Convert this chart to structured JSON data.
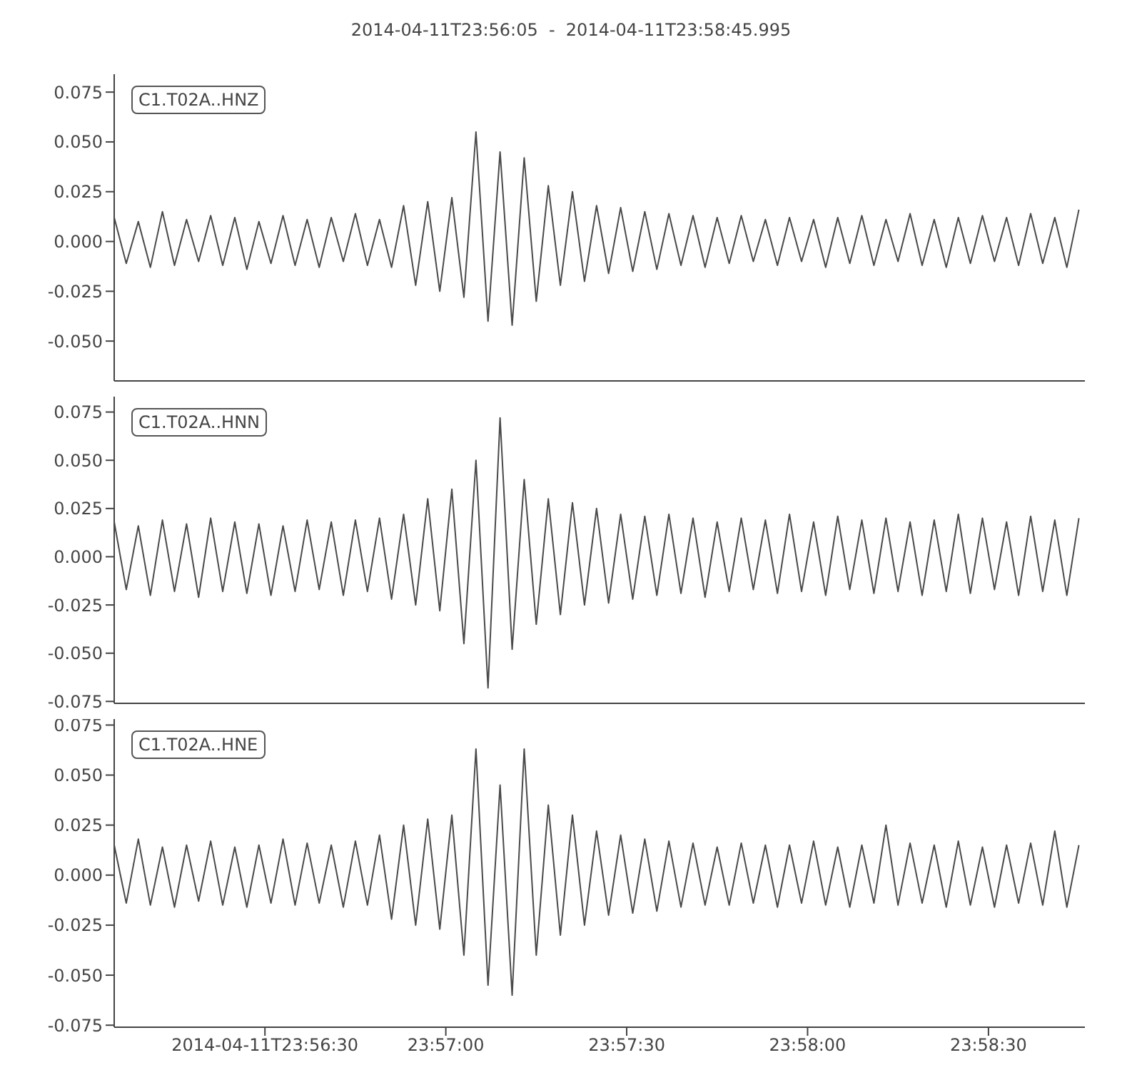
{
  "chart_data": [
    {
      "type": "line",
      "title": "2014-04-11T23:56:05  -  2014-04-11T23:58:45.995",
      "annotations": [
        "C1.T02A..HNZ"
      ],
      "tick_labels": "y",
      "xlim": [
        "2014-04-11T23:56:05",
        "2014-04-11T23:58:45.995"
      ],
      "ylim": [
        -0.07,
        0.084
      ],
      "yticks": [
        {
          "value": -0.05,
          "label": "-0.050"
        },
        {
          "value": -0.025,
          "label": "-0.025"
        },
        {
          "value": 0,
          "label": "0.000"
        },
        {
          "value": 0.025,
          "label": "0.025"
        },
        {
          "value": 0.05,
          "label": "0.050"
        },
        {
          "value": 0.075,
          "label": "0.075"
        }
      ],
      "x": [
        "2014-04-11T23:56:05",
        "2014-04-11T23:56:07",
        "2014-04-11T23:56:09",
        "2014-04-11T23:56:11",
        "2014-04-11T23:56:13",
        "2014-04-11T23:56:15",
        "2014-04-11T23:56:17",
        "2014-04-11T23:56:19",
        "2014-04-11T23:56:21",
        "2014-04-11T23:56:23",
        "2014-04-11T23:56:25",
        "2014-04-11T23:56:27",
        "2014-04-11T23:56:29",
        "2014-04-11T23:56:31",
        "2014-04-11T23:56:33",
        "2014-04-11T23:56:35",
        "2014-04-11T23:56:37",
        "2014-04-11T23:56:39",
        "2014-04-11T23:56:41",
        "2014-04-11T23:56:43",
        "2014-04-11T23:56:45",
        "2014-04-11T23:56:47",
        "2014-04-11T23:56:49",
        "2014-04-11T23:56:51",
        "2014-04-11T23:56:53",
        "2014-04-11T23:56:55",
        "2014-04-11T23:56:57",
        "2014-04-11T23:56:59",
        "2014-04-11T23:57:01",
        "2014-04-11T23:57:03",
        "2014-04-11T23:57:05",
        "2014-04-11T23:57:07",
        "2014-04-11T23:57:09",
        "2014-04-11T23:57:11",
        "2014-04-11T23:57:13",
        "2014-04-11T23:57:15",
        "2014-04-11T23:57:17",
        "2014-04-11T23:57:19",
        "2014-04-11T23:57:21",
        "2014-04-11T23:57:23",
        "2014-04-11T23:57:25",
        "2014-04-11T23:57:27",
        "2014-04-11T23:57:29",
        "2014-04-11T23:57:31",
        "2014-04-11T23:57:33",
        "2014-04-11T23:57:35",
        "2014-04-11T23:57:37",
        "2014-04-11T23:57:39",
        "2014-04-11T23:57:41",
        "2014-04-11T23:57:43",
        "2014-04-11T23:57:45",
        "2014-04-11T23:57:47",
        "2014-04-11T23:57:49",
        "2014-04-11T23:57:51",
        "2014-04-11T23:57:53",
        "2014-04-11T23:57:55",
        "2014-04-11T23:57:57",
        "2014-04-11T23:57:59",
        "2014-04-11T23:58:01",
        "2014-04-11T23:58:03",
        "2014-04-11T23:58:05",
        "2014-04-11T23:58:07",
        "2014-04-11T23:58:09",
        "2014-04-11T23:58:11",
        "2014-04-11T23:58:13",
        "2014-04-11T23:58:15",
        "2014-04-11T23:58:17",
        "2014-04-11T23:58:19",
        "2014-04-11T23:58:21",
        "2014-04-11T23:58:23",
        "2014-04-11T23:58:25",
        "2014-04-11T23:58:27",
        "2014-04-11T23:58:29",
        "2014-04-11T23:58:31",
        "2014-04-11T23:58:33",
        "2014-04-11T23:58:35",
        "2014-04-11T23:58:37",
        "2014-04-11T23:58:39",
        "2014-04-11T23:58:41",
        "2014-04-11T23:58:43",
        "2014-04-11T23:58:45"
      ],
      "series": [
        {
          "color": "#4a4a4a",
          "values": [
            0.012,
            -0.011,
            0.01,
            -0.013,
            0.015,
            -0.012,
            0.011,
            -0.01,
            0.013,
            -0.012,
            0.012,
            -0.014,
            0.01,
            -0.011,
            0.013,
            -0.012,
            0.011,
            -0.013,
            0.012,
            -0.01,
            0.014,
            -0.012,
            0.011,
            -0.013,
            0.018,
            -0.022,
            0.02,
            -0.025,
            0.022,
            -0.028,
            0.055,
            -0.04,
            0.045,
            -0.042,
            0.042,
            -0.03,
            0.028,
            -0.022,
            0.025,
            -0.02,
            0.018,
            -0.016,
            0.017,
            -0.015,
            0.015,
            -0.014,
            0.014,
            -0.012,
            0.013,
            -0.013,
            0.012,
            -0.011,
            0.013,
            -0.01,
            0.011,
            -0.012,
            0.012,
            -0.01,
            0.011,
            -0.013,
            0.012,
            -0.011,
            0.013,
            -0.012,
            0.011,
            -0.01,
            0.014,
            -0.012,
            0.011,
            -0.013,
            0.012,
            -0.011,
            0.013,
            -0.01,
            0.012,
            -0.012,
            0.014,
            -0.011,
            0.012,
            -0.013,
            0.016
          ]
        }
      ]
    },
    {
      "type": "line",
      "annotations": [
        "C1.T02A..HNN"
      ],
      "tick_labels": "y",
      "xlim": [
        "2014-04-11T23:56:05",
        "2014-04-11T23:58:45.995"
      ],
      "ylim": [
        -0.076,
        0.083
      ],
      "yticks": [
        {
          "value": -0.075,
          "label": "-0.075"
        },
        {
          "value": -0.05,
          "label": "-0.050"
        },
        {
          "value": -0.025,
          "label": "-0.025"
        },
        {
          "value": 0,
          "label": "0.000"
        },
        {
          "value": 0.025,
          "label": "0.025"
        },
        {
          "value": 0.05,
          "label": "0.050"
        },
        {
          "value": 0.075,
          "label": "0.075"
        }
      ],
      "x": [
        "2014-04-11T23:56:05",
        "2014-04-11T23:56:07",
        "2014-04-11T23:56:09",
        "2014-04-11T23:56:11",
        "2014-04-11T23:56:13",
        "2014-04-11T23:56:15",
        "2014-04-11T23:56:17",
        "2014-04-11T23:56:19",
        "2014-04-11T23:56:21",
        "2014-04-11T23:56:23",
        "2014-04-11T23:56:25",
        "2014-04-11T23:56:27",
        "2014-04-11T23:56:29",
        "2014-04-11T23:56:31",
        "2014-04-11T23:56:33",
        "2014-04-11T23:56:35",
        "2014-04-11T23:56:37",
        "2014-04-11T23:56:39",
        "2014-04-11T23:56:41",
        "2014-04-11T23:56:43",
        "2014-04-11T23:56:45",
        "2014-04-11T23:56:47",
        "2014-04-11T23:56:49",
        "2014-04-11T23:56:51",
        "2014-04-11T23:56:53",
        "2014-04-11T23:56:55",
        "2014-04-11T23:56:57",
        "2014-04-11T23:56:59",
        "2014-04-11T23:57:01",
        "2014-04-11T23:57:03",
        "2014-04-11T23:57:05",
        "2014-04-11T23:57:07",
        "2014-04-11T23:57:09",
        "2014-04-11T23:57:11",
        "2014-04-11T23:57:13",
        "2014-04-11T23:57:15",
        "2014-04-11T23:57:17",
        "2014-04-11T23:57:19",
        "2014-04-11T23:57:21",
        "2014-04-11T23:57:23",
        "2014-04-11T23:57:25",
        "2014-04-11T23:57:27",
        "2014-04-11T23:57:29",
        "2014-04-11T23:57:31",
        "2014-04-11T23:57:33",
        "2014-04-11T23:57:35",
        "2014-04-11T23:57:37",
        "2014-04-11T23:57:39",
        "2014-04-11T23:57:41",
        "2014-04-11T23:57:43",
        "2014-04-11T23:57:45",
        "2014-04-11T23:57:47",
        "2014-04-11T23:57:49",
        "2014-04-11T23:57:51",
        "2014-04-11T23:57:53",
        "2014-04-11T23:57:55",
        "2014-04-11T23:57:57",
        "2014-04-11T23:57:59",
        "2014-04-11T23:58:01",
        "2014-04-11T23:58:03",
        "2014-04-11T23:58:05",
        "2014-04-11T23:58:07",
        "2014-04-11T23:58:09",
        "2014-04-11T23:58:11",
        "2014-04-11T23:58:13",
        "2014-04-11T23:58:15",
        "2014-04-11T23:58:17",
        "2014-04-11T23:58:19",
        "2014-04-11T23:58:21",
        "2014-04-11T23:58:23",
        "2014-04-11T23:58:25",
        "2014-04-11T23:58:27",
        "2014-04-11T23:58:29",
        "2014-04-11T23:58:31",
        "2014-04-11T23:58:33",
        "2014-04-11T23:58:35",
        "2014-04-11T23:58:37",
        "2014-04-11T23:58:39",
        "2014-04-11T23:58:41",
        "2014-04-11T23:58:43",
        "2014-04-11T23:58:45"
      ],
      "series": [
        {
          "color": "#4a4a4a",
          "values": [
            0.018,
            -0.017,
            0.016,
            -0.02,
            0.019,
            -0.018,
            0.017,
            -0.021,
            0.02,
            -0.018,
            0.018,
            -0.019,
            0.017,
            -0.02,
            0.016,
            -0.018,
            0.019,
            -0.017,
            0.018,
            -0.02,
            0.019,
            -0.018,
            0.02,
            -0.022,
            0.022,
            -0.025,
            0.03,
            -0.028,
            0.035,
            -0.045,
            0.05,
            -0.068,
            0.072,
            -0.048,
            0.04,
            -0.035,
            0.03,
            -0.03,
            0.028,
            -0.025,
            0.025,
            -0.024,
            0.022,
            -0.022,
            0.021,
            -0.02,
            0.022,
            -0.019,
            0.02,
            -0.021,
            0.018,
            -0.018,
            0.02,
            -0.017,
            0.019,
            -0.019,
            0.022,
            -0.018,
            0.018,
            -0.02,
            0.021,
            -0.017,
            0.019,
            -0.019,
            0.02,
            -0.018,
            0.018,
            -0.02,
            0.019,
            -0.018,
            0.022,
            -0.019,
            0.02,
            -0.017,
            0.018,
            -0.02,
            0.021,
            -0.018,
            0.019,
            -0.02,
            0.02
          ]
        }
      ]
    },
    {
      "type": "line",
      "annotations": [
        "C1.T02A..HNE"
      ],
      "xlim": [
        "2014-04-11T23:56:05",
        "2014-04-11T23:58:45.995"
      ],
      "xticks": [
        {
          "value": "2014-04-11T23:56:30",
          "label": "2014-04-11T23:56:30"
        },
        {
          "value": "2014-04-11T23:57:00",
          "label": "23:57:00"
        },
        {
          "value": "2014-04-11T23:57:30",
          "label": "23:57:30"
        },
        {
          "value": "2014-04-11T23:58:00",
          "label": "23:58:00"
        },
        {
          "value": "2014-04-11T23:58:30",
          "label": "23:58:30"
        }
      ],
      "ylim": [
        -0.076,
        0.078
      ],
      "yticks": [
        {
          "value": -0.075,
          "label": "-0.075"
        },
        {
          "value": -0.05,
          "label": "-0.050"
        },
        {
          "value": -0.025,
          "label": "-0.025"
        },
        {
          "value": 0,
          "label": "0.000"
        },
        {
          "value": 0.025,
          "label": "0.025"
        },
        {
          "value": 0.05,
          "label": "0.050"
        },
        {
          "value": 0.075,
          "label": "0.075"
        }
      ],
      "x": [
        "2014-04-11T23:56:05",
        "2014-04-11T23:56:07",
        "2014-04-11T23:56:09",
        "2014-04-11T23:56:11",
        "2014-04-11T23:56:13",
        "2014-04-11T23:56:15",
        "2014-04-11T23:56:17",
        "2014-04-11T23:56:19",
        "2014-04-11T23:56:21",
        "2014-04-11T23:56:23",
        "2014-04-11T23:56:25",
        "2014-04-11T23:56:27",
        "2014-04-11T23:56:29",
        "2014-04-11T23:56:31",
        "2014-04-11T23:56:33",
        "2014-04-11T23:56:35",
        "2014-04-11T23:56:37",
        "2014-04-11T23:56:39",
        "2014-04-11T23:56:41",
        "2014-04-11T23:56:43",
        "2014-04-11T23:56:45",
        "2014-04-11T23:56:47",
        "2014-04-11T23:56:49",
        "2014-04-11T23:56:51",
        "2014-04-11T23:56:53",
        "2014-04-11T23:56:55",
        "2014-04-11T23:56:57",
        "2014-04-11T23:56:59",
        "2014-04-11T23:57:01",
        "2014-04-11T23:57:03",
        "2014-04-11T23:57:05",
        "2014-04-11T23:57:07",
        "2014-04-11T23:57:09",
        "2014-04-11T23:57:11",
        "2014-04-11T23:57:13",
        "2014-04-11T23:57:15",
        "2014-04-11T23:57:17",
        "2014-04-11T23:57:19",
        "2014-04-11T23:57:21",
        "2014-04-11T23:57:23",
        "2014-04-11T23:57:25",
        "2014-04-11T23:57:27",
        "2014-04-11T23:57:29",
        "2014-04-11T23:57:31",
        "2014-04-11T23:57:33",
        "2014-04-11T23:57:35",
        "2014-04-11T23:57:37",
        "2014-04-11T23:57:39",
        "2014-04-11T23:57:41",
        "2014-04-11T23:57:43",
        "2014-04-11T23:57:45",
        "2014-04-11T23:57:47",
        "2014-04-11T23:57:49",
        "2014-04-11T23:57:51",
        "2014-04-11T23:57:53",
        "2014-04-11T23:57:55",
        "2014-04-11T23:57:57",
        "2014-04-11T23:57:59",
        "2014-04-11T23:58:01",
        "2014-04-11T23:58:03",
        "2014-04-11T23:58:05",
        "2014-04-11T23:58:07",
        "2014-04-11T23:58:09",
        "2014-04-11T23:58:11",
        "2014-04-11T23:58:13",
        "2014-04-11T23:58:15",
        "2014-04-11T23:58:17",
        "2014-04-11T23:58:19",
        "2014-04-11T23:58:21",
        "2014-04-11T23:58:23",
        "2014-04-11T23:58:25",
        "2014-04-11T23:58:27",
        "2014-04-11T23:58:29",
        "2014-04-11T23:58:31",
        "2014-04-11T23:58:33",
        "2014-04-11T23:58:35",
        "2014-04-11T23:58:37",
        "2014-04-11T23:58:39",
        "2014-04-11T23:58:41",
        "2014-04-11T23:58:43",
        "2014-04-11T23:58:45"
      ],
      "series": [
        {
          "color": "#4a4a4a",
          "values": [
            0.015,
            -0.014,
            0.018,
            -0.015,
            0.014,
            -0.016,
            0.015,
            -0.013,
            0.017,
            -0.015,
            0.014,
            -0.016,
            0.015,
            -0.014,
            0.018,
            -0.015,
            0.016,
            -0.014,
            0.015,
            -0.016,
            0.017,
            -0.015,
            0.02,
            -0.022,
            0.025,
            -0.025,
            0.028,
            -0.027,
            0.03,
            -0.04,
            0.063,
            -0.055,
            0.045,
            -0.06,
            0.063,
            -0.04,
            0.035,
            -0.03,
            0.03,
            -0.025,
            0.022,
            -0.02,
            0.02,
            -0.019,
            0.018,
            -0.018,
            0.017,
            -0.016,
            0.016,
            -0.015,
            0.014,
            -0.015,
            0.016,
            -0.014,
            0.015,
            -0.016,
            0.015,
            -0.014,
            0.017,
            -0.015,
            0.014,
            -0.016,
            0.015,
            -0.014,
            0.025,
            -0.015,
            0.016,
            -0.014,
            0.015,
            -0.016,
            0.017,
            -0.015,
            0.014,
            -0.016,
            0.015,
            -0.014,
            0.016,
            -0.015,
            0.022,
            -0.016,
            0.015
          ]
        }
      ]
    }
  ]
}
